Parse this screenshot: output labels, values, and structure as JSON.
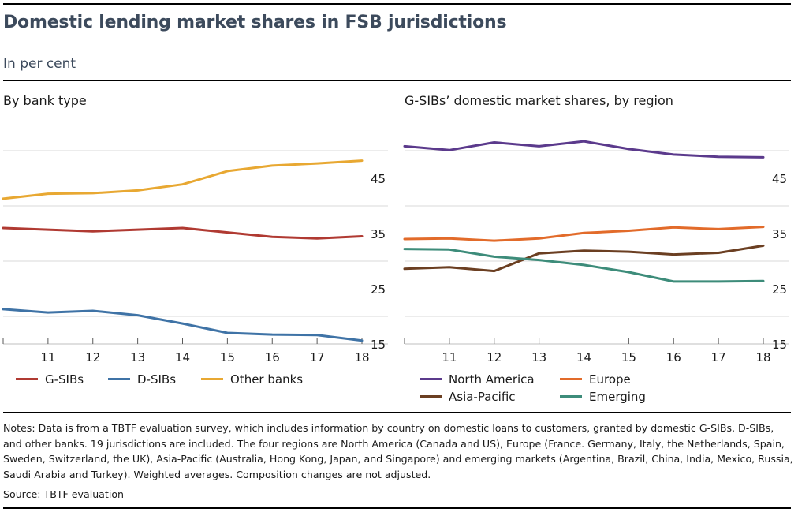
{
  "title": "Domestic lending market shares in FSB jurisdictions",
  "subtitle": "In per cent",
  "notes": "Notes: Data is from a TBTF evaluation survey, which includes information by country on domestic loans to customers, granted by domestic G-SIBs, D-SIBs, and other banks. 19 jurisdictions are included. The four regions are North America (Canada and US), Europe (France. Germany, Italy, the Netherlands, Spain, Sweden, Switzerland, the UK), Asia-Pacific (Australia, Hong Kong, Japan, and Singapore) and emerging markets (Argentina, Brazil, China, India, Mexico, Russia, Saudi Arabia and Turkey). Weighted averages. Composition changes are not adjusted.",
  "source": "Source: TBTF evaluation",
  "chart_data": [
    {
      "type": "line",
      "title": "By bank type",
      "x": [
        10,
        11,
        12,
        13,
        14,
        15,
        16,
        17,
        18
      ],
      "x_tick_labels": [
        "11",
        "12",
        "13",
        "14",
        "15",
        "16",
        "17",
        "18"
      ],
      "y_ticks": [
        15,
        25,
        35,
        45
      ],
      "ylim": [
        15,
        55
      ],
      "y_axis_position": "right",
      "grid": true,
      "legend_position": "bottom",
      "series": [
        {
          "name": "G-SIBs",
          "color": "#b03a32",
          "values": [
            36.0,
            35.7,
            35.4,
            35.7,
            36.0,
            35.2,
            34.4,
            34.1,
            34.5
          ]
        },
        {
          "name": "D-SIBs",
          "color": "#3f73a6",
          "values": [
            21.3,
            20.7,
            21.0,
            20.2,
            18.7,
            17.0,
            16.7,
            16.6,
            15.6
          ]
        },
        {
          "name": "Other banks",
          "color": "#e8a832",
          "values": [
            41.3,
            42.2,
            42.3,
            42.8,
            43.9,
            46.3,
            47.3,
            47.7,
            48.2
          ]
        }
      ]
    },
    {
      "type": "line",
      "title": "G-SIBs’ domestic market shares, by region",
      "x": [
        10,
        11,
        12,
        13,
        14,
        15,
        16,
        17,
        18
      ],
      "x_tick_labels": [
        "11",
        "12",
        "13",
        "14",
        "15",
        "16",
        "17",
        "18"
      ],
      "y_ticks": [
        15,
        25,
        35,
        45
      ],
      "ylim": [
        15,
        55
      ],
      "y_axis_position": "right",
      "grid": true,
      "legend_position": "bottom",
      "series": [
        {
          "name": "North America",
          "color": "#5b3a8c",
          "values": [
            50.8,
            50.1,
            51.5,
            50.8,
            51.7,
            50.3,
            49.3,
            48.9,
            48.8
          ]
        },
        {
          "name": "Europe",
          "color": "#e26b2a",
          "values": [
            34.0,
            34.1,
            33.7,
            34.1,
            35.1,
            35.5,
            36.1,
            35.8,
            36.2
          ]
        },
        {
          "name": "Asia-Pacific",
          "color": "#6b3f22",
          "values": [
            28.6,
            28.9,
            28.2,
            31.4,
            31.9,
            31.7,
            31.2,
            31.5,
            32.8
          ]
        },
        {
          "name": "Emerging",
          "color": "#3d8c7a",
          "values": [
            32.2,
            32.1,
            30.8,
            30.2,
            29.3,
            28.0,
            26.3,
            26.3,
            26.4
          ]
        }
      ]
    }
  ]
}
